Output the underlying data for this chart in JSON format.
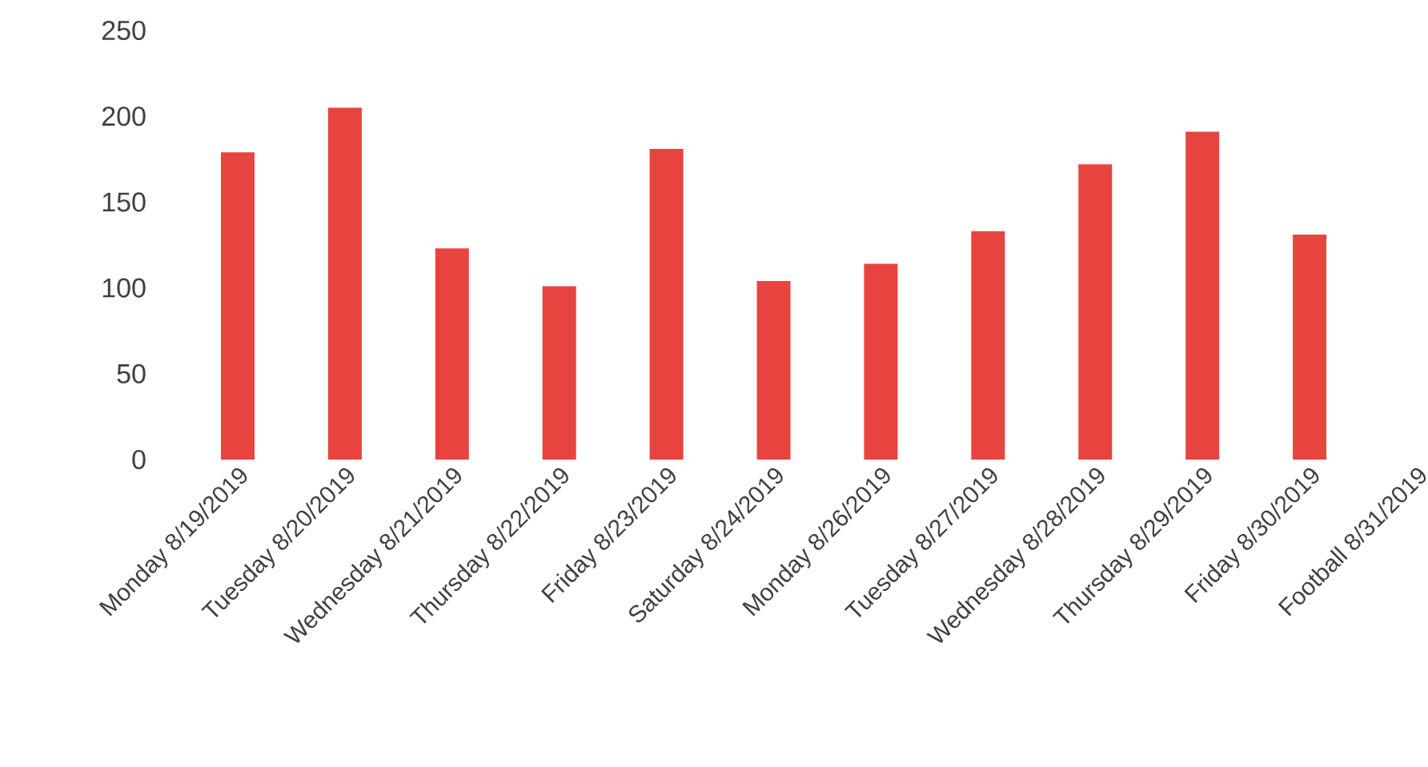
{
  "chart_data": {
    "type": "bar",
    "categories": [
      "Monday 8/19/2019",
      "Tuesday 8/20/2019",
      "Wednesday 8/21/2019",
      "Thursday 8/22/2019",
      "Friday 8/23/2019",
      "Saturday 8/24/2019",
      "Monday 8/26/2019",
      "Tuesday 8/27/2019",
      "Wednesday 8/28/2019",
      "Thursday 8/29/2019",
      "Friday 8/30/2019",
      "Football 8/31/2019"
    ],
    "values": [
      179,
      205,
      123,
      101,
      181,
      104,
      114,
      133,
      172,
      191,
      131,
      null
    ],
    "color": "#e8443f",
    "ylim": [
      0,
      250
    ],
    "yticks": [
      0,
      50,
      100,
      150,
      200,
      250
    ]
  }
}
